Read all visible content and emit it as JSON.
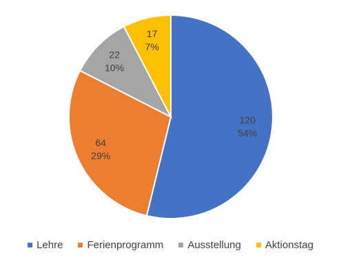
{
  "chart_data": {
    "type": "pie",
    "title": "",
    "categories": [
      "Lehre",
      "Ferienprogramm",
      "Ausstellung",
      "Aktionstag"
    ],
    "values": [
      120,
      64,
      22,
      17
    ],
    "percent_labels": [
      "54%",
      "29%",
      "10%",
      "7%"
    ],
    "colors": [
      "#4472C4",
      "#ED7D31",
      "#A5A5A5",
      "#FFC000"
    ],
    "start_angle_deg": 0,
    "direction": "clockwise",
    "legend_position": "bottom"
  }
}
